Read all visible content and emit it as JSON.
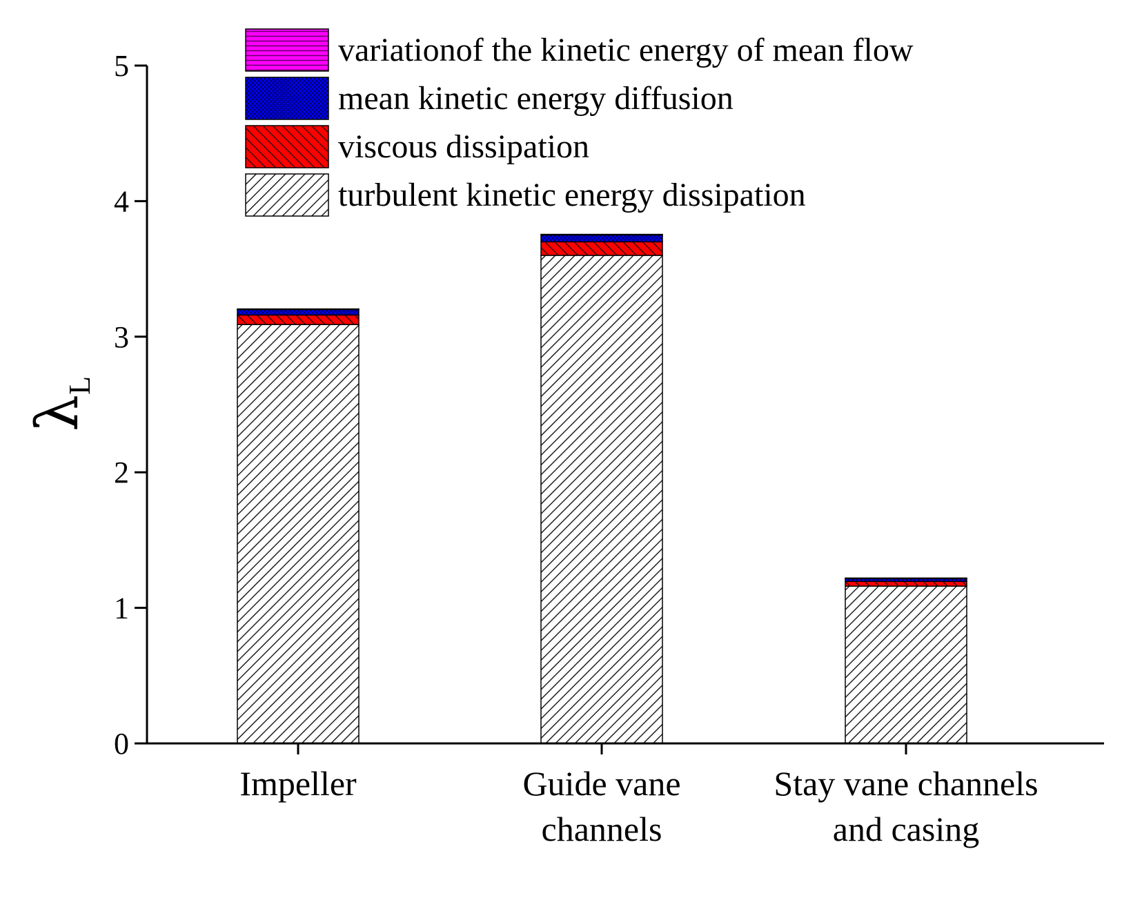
{
  "chart_data": {
    "type": "bar",
    "stacked": true,
    "title": "",
    "xlabel": "",
    "ylabel": "λ",
    "ylabel_subscript": "L",
    "ylim": [
      0,
      5
    ],
    "yticks": [
      "0",
      "1",
      "2",
      "3",
      "4",
      "5"
    ],
    "categories": [
      [
        "Impeller"
      ],
      [
        "Guide vane",
        "channels"
      ],
      [
        "Stay vane channels",
        "and casing"
      ]
    ],
    "series": [
      {
        "name": "turbulent kinetic energy dissipation",
        "values": [
          3.09,
          3.6,
          1.16
        ],
        "color": "#ffffff",
        "pattern": "diag-gray"
      },
      {
        "name": "viscous dissipation",
        "values": [
          0.07,
          0.1,
          0.035
        ],
        "color": "#ff0000",
        "pattern": "diag-red"
      },
      {
        "name": "mean kinetic energy diffusion",
        "values": [
          0.04,
          0.05,
          0.02
        ],
        "color": "#0000ff",
        "pattern": "cross-blue"
      },
      {
        "name": "variationof the kinetic energy of mean flow",
        "values": [
          0.005,
          0.005,
          0.005
        ],
        "color": "#ff00ff",
        "pattern": "horiz-magenta"
      }
    ],
    "legend": {
      "placement": "top",
      "order": [
        "variationof the kinetic energy of mean flow",
        "mean kinetic energy diffusion",
        "viscous dissipation",
        "turbulent kinetic energy dissipation"
      ]
    },
    "grid": false
  }
}
